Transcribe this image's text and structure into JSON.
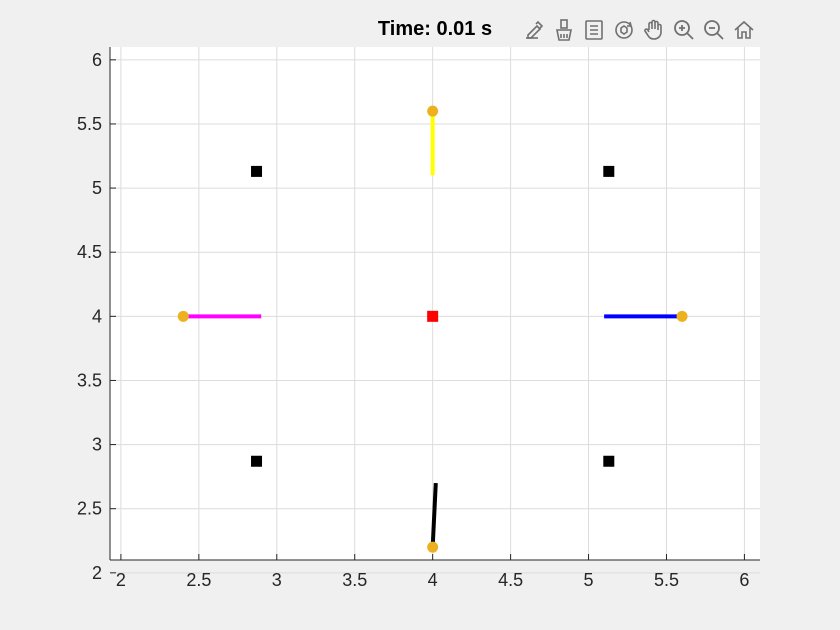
{
  "title": "Time: 0.01 s",
  "toolbar": [
    {
      "name": "brush-edit-icon"
    },
    {
      "name": "brush-data-icon"
    },
    {
      "name": "data-tips-icon"
    },
    {
      "name": "rotate-3d-icon"
    },
    {
      "name": "pan-hand-icon"
    },
    {
      "name": "zoom-in-icon"
    },
    {
      "name": "zoom-out-icon"
    },
    {
      "name": "home-icon"
    }
  ],
  "colors": {
    "grid": "#dcdcdc",
    "axes": "#262626",
    "ball": "#edb120",
    "black_marker": "#000000",
    "center_marker": "#ff0000"
  },
  "chart_data": {
    "type": "scatter",
    "title": "Time: 0.01 s",
    "xlim": [
      1.93,
      6.1
    ],
    "ylim": [
      2.1,
      6.1
    ],
    "xticks": [
      2,
      2.5,
      3,
      3.5,
      4,
      4.5,
      5,
      5.5,
      6
    ],
    "yticks": [
      2,
      2.5,
      3,
      3.5,
      4,
      4.5,
      5,
      5.5,
      6
    ],
    "xtick_labels": [
      "2",
      "2.5",
      "3",
      "3.5",
      "4",
      "4.5",
      "5",
      "5.5",
      "6"
    ],
    "ytick_labels": [
      "2",
      "2.5",
      "3",
      "3.5",
      "4",
      "4.5",
      "5",
      "5.5",
      "6"
    ],
    "grid": true,
    "square_markers": [
      {
        "x": 2.87,
        "y": 5.13,
        "color": "#000000"
      },
      {
        "x": 5.13,
        "y": 5.13,
        "color": "#000000"
      },
      {
        "x": 2.87,
        "y": 2.87,
        "color": "#000000"
      },
      {
        "x": 5.13,
        "y": 2.87,
        "color": "#000000"
      },
      {
        "x": 4.0,
        "y": 4.0,
        "color": "#ff0000"
      }
    ],
    "pendulums": [
      {
        "color": "#ff00ff",
        "x1": 2.9,
        "y1": 4.0,
        "x2": 2.4,
        "y2": 4.0
      },
      {
        "color": "#ffff00",
        "x1": 4.0,
        "y1": 5.1,
        "x2": 4.0,
        "y2": 5.6
      },
      {
        "color": "#0000ff",
        "x1": 5.1,
        "y1": 4.0,
        "x2": 5.6,
        "y2": 4.0
      },
      {
        "color": "#000000",
        "x1": 4.02,
        "y1": 2.7,
        "x2": 4.0,
        "y2": 2.2
      }
    ]
  }
}
